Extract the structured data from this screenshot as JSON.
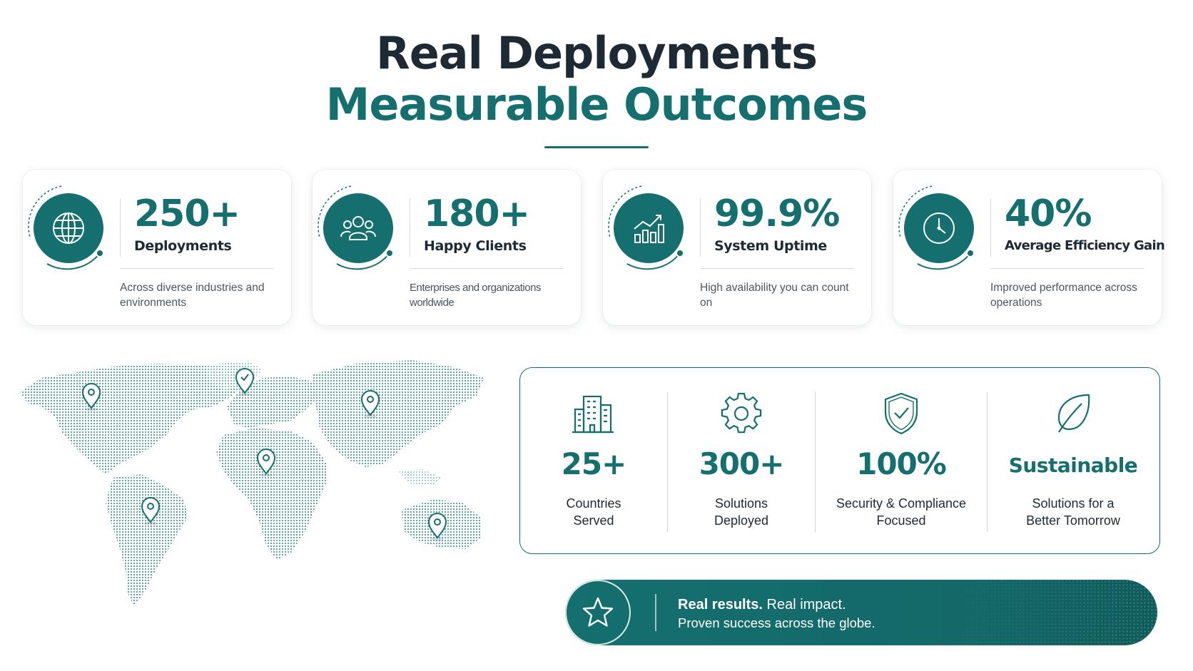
{
  "header": {
    "title_line1": "Real Deployments",
    "title_line2": "Measurable Outcomes",
    "accent_color": "#156f6f"
  },
  "stats": [
    {
      "icon": "globe-icon",
      "value": "250+",
      "label": "Deployments",
      "desc": "Across diverse industries and environments"
    },
    {
      "icon": "people-icon",
      "value": "180+",
      "label": "Happy Clients",
      "desc": "Enterprises and organizations worldwide"
    },
    {
      "icon": "growth-chart-icon",
      "value": "99.9%",
      "label": "System Uptime",
      "desc": "High availability you can count on"
    },
    {
      "icon": "clock-icon",
      "value": "40%",
      "label": "Average Efficiency Gain",
      "desc": "Improved performance across operations"
    }
  ],
  "map": {
    "icon": "world-map",
    "pins": [
      "north-america-pin",
      "europe-pin",
      "asia-pin",
      "africa-pin",
      "south-america-pin",
      "australia-pin"
    ]
  },
  "features": [
    {
      "icon": "building-icon",
      "value": "25+",
      "desc": "Countries\nServed"
    },
    {
      "icon": "gear-icon",
      "value": "300+",
      "desc": "Solutions\nDeployed"
    },
    {
      "icon": "shield-check-icon",
      "value": "100%",
      "desc": "Security & Compliance\nFocused"
    },
    {
      "icon": "leaf-icon",
      "value": "Sustainable",
      "desc": "Solutions for a\nBetter Tomorrow"
    }
  ],
  "banner": {
    "icon": "star-icon",
    "bold": "Real results.",
    "rest": " Real impact.",
    "line2": "Proven success across the globe."
  }
}
